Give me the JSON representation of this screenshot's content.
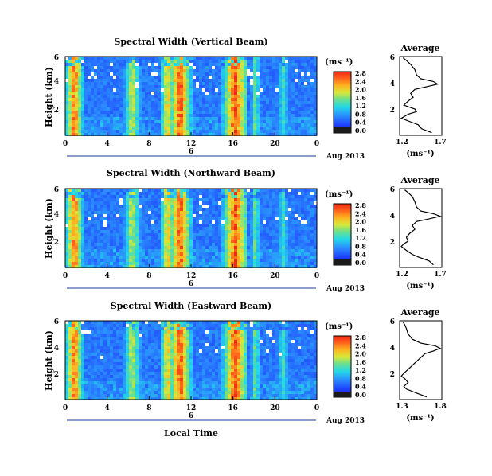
{
  "chart_data": [
    {
      "type": "heatmap",
      "title": "Spectral Width (Vertical Beam)",
      "ylabel": "Height (km)",
      "y_ticks": [
        "6",
        "4",
        "2"
      ],
      "x_ticks": [
        "0",
        "4",
        "8",
        "12",
        "16",
        "20",
        "0"
      ],
      "day_marker": "6",
      "date_label": "Aug 2013",
      "colorbar": {
        "unit": "(ms⁻¹)",
        "ticks": [
          "0.0",
          "0.4",
          "0.8",
          "1.2",
          "1.6",
          "2.0",
          "2.4",
          "2.8"
        ]
      },
      "average": {
        "title": "Average",
        "xlabel": "(ms⁻¹)",
        "x_ticks": [
          "1.2",
          "1.7"
        ],
        "xlim": [
          1.2,
          1.7
        ],
        "y_ticks": [
          "6",
          "4",
          "2"
        ],
        "ylim": [
          0,
          6
        ],
        "height_km": [
          0.2,
          0.5,
          0.8,
          1.0,
          1.3,
          1.6,
          1.8,
          2.0,
          2.3,
          2.6,
          2.9,
          3.2,
          3.5,
          3.7,
          3.9,
          4.1,
          4.3,
          4.6,
          5.0,
          5.4,
          5.7,
          5.9
        ],
        "values": [
          1.58,
          1.46,
          1.42,
          1.34,
          1.22,
          1.3,
          1.4,
          1.38,
          1.25,
          1.3,
          1.36,
          1.33,
          1.38,
          1.52,
          1.65,
          1.6,
          1.45,
          1.4,
          1.38,
          1.33,
          1.28,
          1.24
        ]
      }
    },
    {
      "type": "heatmap",
      "title": "Spectral Width (Northward Beam)",
      "ylabel": "Height (km)",
      "y_ticks": [
        "6",
        "4",
        "2"
      ],
      "x_ticks": [
        "0",
        "4",
        "8",
        "12",
        "16",
        "20",
        "0"
      ],
      "day_marker": "6",
      "date_label": "Aug 2013",
      "colorbar": {
        "unit": "(ms⁻¹)",
        "ticks": [
          "0.0",
          "0.4",
          "0.8",
          "1.2",
          "1.6",
          "2.0",
          "2.4",
          "2.8"
        ]
      },
      "average": {
        "title": "Average",
        "xlabel": "(ms⁻¹)",
        "x_ticks": [
          "1.2",
          "1.7"
        ],
        "xlim": [
          1.2,
          1.7
        ],
        "y_ticks": [
          "6",
          "4",
          "2"
        ],
        "ylim": [
          0,
          6
        ],
        "height_km": [
          0.2,
          0.5,
          0.8,
          1.0,
          1.3,
          1.6,
          1.8,
          2.0,
          2.3,
          2.6,
          2.9,
          3.2,
          3.5,
          3.7,
          3.9,
          4.1,
          4.3,
          4.6,
          5.0,
          5.4,
          5.7,
          5.9
        ],
        "values": [
          1.6,
          1.55,
          1.42,
          1.35,
          1.28,
          1.22,
          1.25,
          1.3,
          1.28,
          1.32,
          1.38,
          1.35,
          1.4,
          1.55,
          1.68,
          1.6,
          1.45,
          1.4,
          1.38,
          1.35,
          1.3,
          1.26
        ]
      }
    },
    {
      "type": "heatmap",
      "title": "Spectral Width (Eastward Beam)",
      "ylabel": "Height (km)",
      "y_ticks": [
        "6",
        "4",
        "2"
      ],
      "x_ticks": [
        "0",
        "4",
        "8",
        "12",
        "16",
        "20",
        "0"
      ],
      "day_marker": "6",
      "date_label": "Aug 2013",
      "colorbar": {
        "unit": "(ms⁻¹)",
        "ticks": [
          "0.0",
          "0.4",
          "0.8",
          "1.2",
          "1.6",
          "2.0",
          "2.4",
          "2.8"
        ]
      },
      "average": {
        "title": "Average",
        "xlabel": "(ms⁻¹)",
        "x_ticks": [
          "1.3",
          "1.8"
        ],
        "xlim": [
          1.3,
          1.8
        ],
        "y_ticks": [
          "6",
          "4",
          "2"
        ],
        "ylim": [
          0,
          6
        ],
        "height_km": [
          0.2,
          0.5,
          0.8,
          1.0,
          1.3,
          1.6,
          1.8,
          2.0,
          2.3,
          2.6,
          2.9,
          3.2,
          3.5,
          3.7,
          3.9,
          4.1,
          4.3,
          4.6,
          5.0,
          5.4,
          5.7,
          5.9
        ],
        "values": [
          1.62,
          1.5,
          1.38,
          1.35,
          1.4,
          1.36,
          1.32,
          1.35,
          1.4,
          1.45,
          1.5,
          1.55,
          1.6,
          1.7,
          1.78,
          1.72,
          1.55,
          1.45,
          1.4,
          1.38,
          1.36,
          1.34
        ]
      }
    }
  ],
  "shared_xlabel": "Local Time"
}
